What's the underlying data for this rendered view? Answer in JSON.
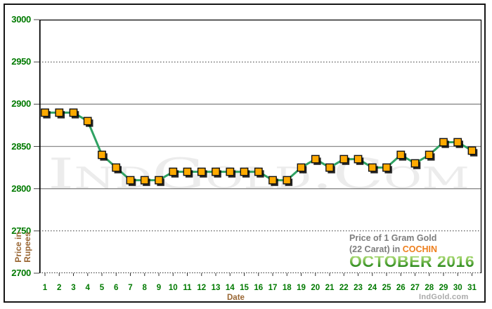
{
  "colors": {
    "axis-green": "#007a00",
    "axis-brown": "#996633",
    "legend-gray": "#7d7d7d",
    "cochin-orange": "#ee7f1d",
    "october-green-1": "#9ed36a",
    "october-green-2": "#2f8c1f",
    "brand-gray": "#a9a9a9",
    "grid-gray": "#8c8c8c",
    "line-green": "#2fa263",
    "marker-orange": "#ffaa00"
  },
  "chart_data": {
    "type": "line",
    "title": "Price of 1 Gram Gold (22 Carat) in COCHIN - October 2016",
    "xlabel": "Date",
    "ylabel": "Price in Rupees",
    "x": [
      1,
      2,
      3,
      4,
      5,
      6,
      7,
      8,
      9,
      10,
      11,
      12,
      13,
      14,
      15,
      16,
      17,
      18,
      19,
      20,
      21,
      22,
      23,
      24,
      25,
      26,
      27,
      28,
      29,
      30,
      31
    ],
    "values": [
      2890,
      2890,
      2890,
      2880,
      2840,
      2825,
      2810,
      2810,
      2810,
      2820,
      2820,
      2820,
      2820,
      2820,
      2820,
      2820,
      2810,
      2810,
      2825,
      2835,
      2825,
      2835,
      2835,
      2825,
      2825,
      2840,
      2830,
      2840,
      2855,
      2855,
      2845
    ],
    "unit": "Rupees per 1 gram 22 carat gold",
    "ylim": [
      2700,
      3000
    ],
    "yticks": [
      3000,
      2950,
      2900,
      2850,
      2800,
      2750,
      2700
    ],
    "dotted_gridlines": [
      2950,
      2750
    ],
    "solid_gridlines": [
      2900,
      2850,
      2800
    ],
    "grid": "horizontal-only",
    "marker_shape": "square",
    "legend_position": "bottom-right-inside"
  },
  "labels": {
    "y_axis_title_line1": "Price in",
    "y_axis_title_line2": "Rupees",
    "x_axis_title": "Date"
  },
  "legend": {
    "line1": "Price of 1 Gram Gold",
    "line2_prefix": "(22 Carat) in ",
    "location": "COCHIN",
    "period": "OCTOBER 2016"
  },
  "watermark": {
    "text": "IndGold.Com"
  },
  "footer": {
    "brand": "IndGold.com"
  }
}
